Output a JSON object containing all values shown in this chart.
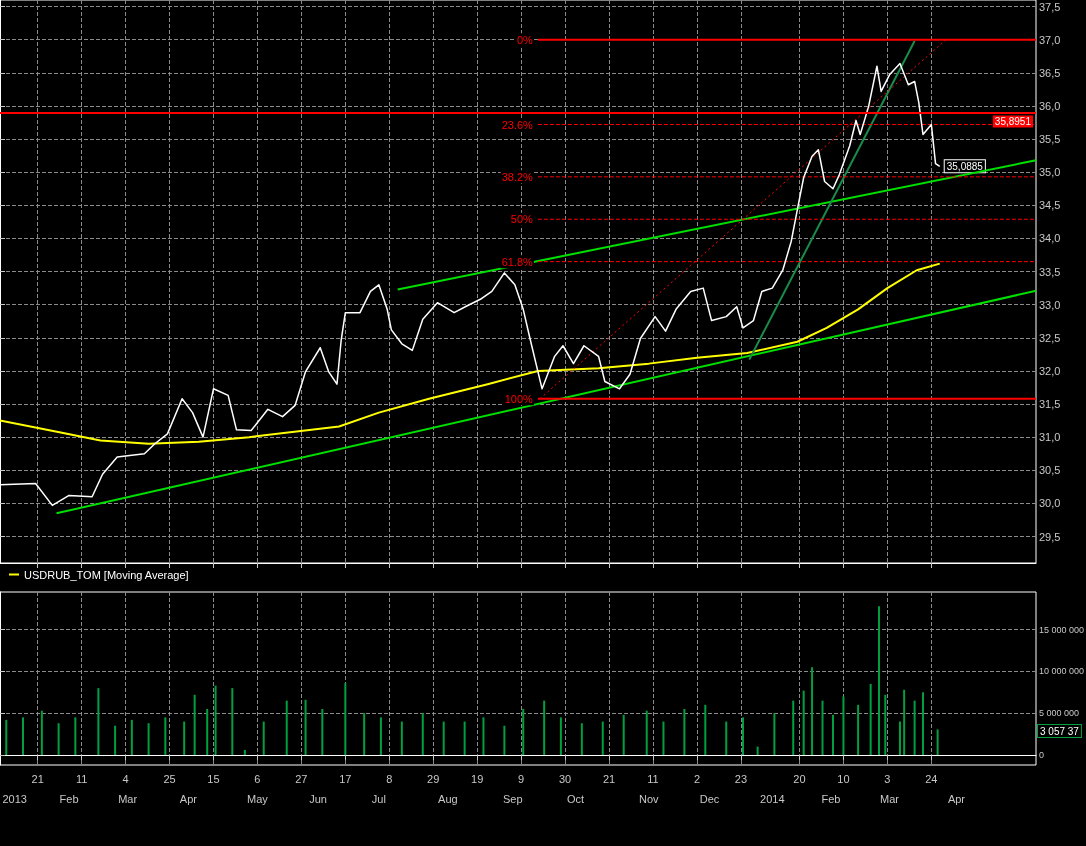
{
  "chart_data": [
    {
      "type": "line",
      "xlim": [
        "2013-01-03",
        "2014-05-13"
      ],
      "ylim": [
        29.1,
        37.6
      ],
      "xticks": [
        {
          "value": "2013-01-21",
          "label": null
        },
        {
          "value": "2013-02-11",
          "label": null
        },
        {
          "value": "2013-03-04",
          "label": null
        },
        {
          "value": "2013-03-25",
          "label": null
        },
        {
          "value": "2013-04-15",
          "label": null
        },
        {
          "value": "2013-05-06",
          "label": null
        },
        {
          "value": "2013-05-27",
          "label": null
        },
        {
          "value": "2013-06-17",
          "label": null
        },
        {
          "value": "2013-07-08",
          "label": null
        },
        {
          "value": "2013-07-29",
          "label": null
        },
        {
          "value": "2013-08-19",
          "label": null
        },
        {
          "value": "2013-09-09",
          "label": null
        },
        {
          "value": "2013-09-30",
          "label": null
        },
        {
          "value": "2013-10-21",
          "label": null
        },
        {
          "value": "2013-11-11",
          "label": null
        },
        {
          "value": "2013-12-02",
          "label": null
        },
        {
          "value": "2013-12-23",
          "label": null
        },
        {
          "value": "2014-01-20",
          "label": null
        },
        {
          "value": "2014-02-10",
          "label": null
        },
        {
          "value": "2014-03-03",
          "label": null
        },
        {
          "value": "2014-03-24",
          "label": null
        }
      ],
      "yticks": [
        {
          "value": 29.5,
          "label": "29,5"
        },
        {
          "value": 30,
          "label": "30,0"
        },
        {
          "value": 30.5,
          "label": "30,5"
        },
        {
          "value": 31,
          "label": "31,0"
        },
        {
          "value": 31.5,
          "label": "31,5"
        },
        {
          "value": 32,
          "label": "32,0"
        },
        {
          "value": 32.5,
          "label": "32,5"
        },
        {
          "value": 33,
          "label": "33,0"
        },
        {
          "value": 33.5,
          "label": "33,5"
        },
        {
          "value": 34,
          "label": "34,0"
        },
        {
          "value": 34.5,
          "label": "34,5"
        },
        {
          "value": 35,
          "label": "35,0"
        },
        {
          "value": 35.5,
          "label": "35,5"
        },
        {
          "value": 36,
          "label": "36,0"
        },
        {
          "value": 36.5,
          "label": "36,5"
        },
        {
          "value": 37,
          "label": "37,0"
        },
        {
          "value": 37.5,
          "label": "37,5"
        }
      ],
      "tick_labels": "y",
      "grid": true,
      "legend": "bottom left",
      "marker": "none",
      "series": [
        {
          "name": "USDRUB_TOM [Moving Average]",
          "color": "#ffff00",
          "x": [
            "2013-01-03",
            "2013-02-01",
            "2013-02-20",
            "2013-03-15",
            "2013-04-08",
            "2013-05-02",
            "2013-06-14",
            "2013-07-03",
            "2013-07-27",
            "2013-08-24",
            "2013-09-17",
            "2013-10-16",
            "2013-11-09",
            "2013-12-02",
            "2013-12-26",
            "2014-01-19",
            "2014-02-02",
            "2014-02-17",
            "2014-03-03",
            "2014-03-17",
            "2014-03-28"
          ],
          "values": [
            31.25,
            31.07,
            30.95,
            30.9,
            30.93,
            31.0,
            31.16,
            31.37,
            31.58,
            31.8,
            32.0,
            32.04,
            32.11,
            32.2,
            32.27,
            32.44,
            32.65,
            32.93,
            33.25,
            33.52,
            33.62
          ]
        },
        {
          "color": "#00e000",
          "x": [
            "2013-01-30",
            "2014-05-13"
          ],
          "values": [
            29.85,
            33.21
          ]
        },
        {
          "color": "#00e000",
          "x": [
            "2013-07-12",
            "2014-05-13"
          ],
          "values": [
            33.23,
            35.18
          ]
        },
        {
          "color": "#1a8c4a",
          "x": [
            "2013-12-27",
            "2014-03-16"
          ],
          "values": [
            32.17,
            36.98
          ]
        },
        {
          "color": "#ff0000",
          "line_style": "dotted",
          "x": [
            "2013-09-18",
            "2014-03-31"
          ],
          "values": [
            31.58,
            37.0
          ]
        },
        {
          "color": "#ff0000",
          "line_style": "solid",
          "x": [
            "2013-09-17",
            "2014-05-13"
          ],
          "values": [
            37.0,
            37.0
          ]
        },
        {
          "color": "#ff0000",
          "line_style": "dashed",
          "x": [
            "2013-09-17",
            "2014-05-13"
          ],
          "values": [
            35.72,
            35.72
          ]
        },
        {
          "color": "#ff0000",
          "line_style": "dashed",
          "x": [
            "2013-09-17",
            "2014-05-13"
          ],
          "values": [
            34.93,
            34.93
          ]
        },
        {
          "color": "#ff0000",
          "line_style": "dashed",
          "x": [
            "2013-09-17",
            "2014-05-13"
          ],
          "values": [
            34.29,
            34.29
          ]
        },
        {
          "color": "#ff0000",
          "line_style": "dashed",
          "x": [
            "2013-09-17",
            "2014-05-13"
          ],
          "values": [
            33.65,
            33.65
          ]
        },
        {
          "color": "#ff0000",
          "line_style": "solid",
          "x": [
            "2013-09-17",
            "2014-05-13"
          ],
          "values": [
            31.58,
            31.58
          ]
        },
        {
          "color": "#ffffff",
          "x": [
            "2013-01-03",
            "2013-01-20",
            "2013-01-28",
            "2013-02-05",
            "2013-02-16",
            "2013-02-21",
            "2013-02-28",
            "2013-03-13",
            "2013-03-18",
            "2013-03-24",
            "2013-03-31",
            "2013-04-05",
            "2013-04-10",
            "2013-04-15",
            "2013-04-22",
            "2013-04-26",
            "2013-05-03",
            "2013-05-11",
            "2013-05-18",
            "2013-05-24",
            "2013-05-29",
            "2013-06-05",
            "2013-06-09",
            "2013-06-13",
            "2013-06-15",
            "2013-06-17",
            "2013-06-24",
            "2013-06-29",
            "2013-07-03",
            "2013-07-07",
            "2013-07-09",
            "2013-07-14",
            "2013-07-19",
            "2013-07-24",
            "2013-07-31",
            "2013-08-08",
            "2013-08-14",
            "2013-08-21",
            "2013-08-26",
            "2013-09-01",
            "2013-09-06",
            "2013-09-10",
            "2013-09-13",
            "2013-09-19",
            "2013-09-25",
            "2013-09-29",
            "2013-10-04",
            "2013-10-09",
            "2013-10-16",
            "2013-10-19",
            "2013-10-26",
            "2013-10-31",
            "2013-11-05",
            "2013-11-12",
            "2013-11-17",
            "2013-11-22",
            "2013-11-29",
            "2013-12-05",
            "2013-12-09",
            "2013-12-16",
            "2013-12-21",
            "2013-12-24",
            "2013-12-29",
            "2014-01-02",
            "2014-01-07",
            "2014-01-12",
            "2014-01-16",
            "2014-01-19",
            "2014-01-22",
            "2014-01-26",
            "2014-01-29",
            "2014-02-01",
            "2014-02-05",
            "2014-02-08",
            "2014-02-13",
            "2014-02-16",
            "2014-02-18",
            "2014-02-22",
            "2014-02-26",
            "2014-02-28",
            "2014-03-04",
            "2014-03-09",
            "2014-03-13",
            "2014-03-16",
            "2014-03-18",
            "2014-03-20",
            "2014-03-24",
            "2014-03-26",
            "2014-03-28"
          ],
          "values": [
            30.28,
            30.3,
            29.97,
            30.12,
            30.1,
            30.44,
            30.7,
            30.75,
            30.9,
            31.05,
            31.58,
            31.37,
            31.0,
            31.73,
            31.63,
            31.11,
            31.1,
            31.42,
            31.31,
            31.48,
            31.99,
            32.35,
            31.99,
            31.8,
            32.46,
            32.88,
            32.88,
            33.2,
            33.3,
            32.93,
            32.62,
            32.41,
            32.31,
            32.78,
            33.03,
            32.88,
            32.98,
            33.09,
            33.2,
            33.48,
            33.3,
            32.93,
            32.52,
            31.73,
            32.22,
            32.38,
            32.11,
            32.38,
            32.22,
            31.84,
            31.73,
            31.95,
            32.49,
            32.82,
            32.6,
            32.93,
            33.2,
            33.25,
            32.76,
            32.82,
            32.97,
            32.65,
            32.76,
            33.2,
            33.25,
            33.52,
            33.95,
            34.44,
            34.92,
            35.24,
            35.34,
            34.86,
            34.75,
            34.96,
            35.4,
            35.78,
            35.57,
            35.99,
            36.6,
            36.22,
            36.47,
            36.64,
            36.32,
            36.37,
            36.05,
            35.57,
            35.72,
            35.13,
            35.0885
          ],
          "value_labels": [
            null,
            null,
            null,
            null,
            null,
            null,
            null,
            null,
            null,
            null,
            null,
            null,
            null,
            null,
            null,
            null,
            null,
            null,
            null,
            null,
            null,
            null,
            null,
            null,
            null,
            null,
            null,
            null,
            null,
            null,
            null,
            null,
            null,
            null,
            null,
            null,
            null,
            null,
            null,
            null,
            null,
            null,
            null,
            null,
            null,
            null,
            null,
            null,
            null,
            null,
            null,
            null,
            null,
            null,
            null,
            null,
            null,
            null,
            null,
            null,
            null,
            null,
            null,
            null,
            null,
            null,
            null,
            null,
            null,
            null,
            null,
            null,
            null,
            null,
            null,
            null,
            null,
            null,
            null,
            null,
            null,
            null,
            null,
            null,
            null,
            null,
            null,
            null,
            "35,0885"
          ]
        }
      ],
      "ref_lines": [
        {
          "axis": "y",
          "value": 35.8951,
          "label": "35,8951",
          "color": "#ff0000",
          "line_style": "solid"
        }
      ],
      "annotations": [
        {
          "text": "0%",
          "x": "2013-09-17",
          "y": 37.0
        },
        {
          "text": "23.6%",
          "x": "2013-09-17",
          "y": 35.72
        },
        {
          "text": "38.2%",
          "x": "2013-09-17",
          "y": 34.93
        },
        {
          "text": "50%",
          "x": "2013-09-17",
          "y": 34.29
        },
        {
          "text": "61.8%",
          "x": "2013-09-17",
          "y": 33.65
        },
        {
          "text": "100%",
          "x": "2013-09-17",
          "y": 31.58
        }
      ]
    },
    {
      "type": "bar",
      "xlim": [
        "2013-01-03",
        "2014-05-13"
      ],
      "x2lim": [
        "2013-01-03",
        "2014-05-13"
      ],
      "ylim": [
        -1200000,
        19500000
      ],
      "xticks": [
        {
          "value": "2013-01-21",
          "label": "21"
        },
        {
          "value": "2013-02-11",
          "label": "11"
        },
        {
          "value": "2013-03-04",
          "label": "4"
        },
        {
          "value": "2013-03-25",
          "label": "25"
        },
        {
          "value": "2013-04-15",
          "label": "15"
        },
        {
          "value": "2013-05-06",
          "label": "6"
        },
        {
          "value": "2013-05-27",
          "label": "27"
        },
        {
          "value": "2013-06-17",
          "label": "17"
        },
        {
          "value": "2013-07-08",
          "label": "8"
        },
        {
          "value": "2013-07-29",
          "label": "29"
        },
        {
          "value": "2013-08-19",
          "label": "19"
        },
        {
          "value": "2013-09-09",
          "label": "9"
        },
        {
          "value": "2013-09-30",
          "label": "30"
        },
        {
          "value": "2013-10-21",
          "label": "21"
        },
        {
          "value": "2013-11-11",
          "label": "11"
        },
        {
          "value": "2013-12-02",
          "label": "2"
        },
        {
          "value": "2013-12-23",
          "label": "23"
        },
        {
          "value": "2014-01-20",
          "label": "20"
        },
        {
          "value": "2014-02-10",
          "label": "10"
        },
        {
          "value": "2014-03-03",
          "label": "3"
        },
        {
          "value": "2014-03-24",
          "label": "24"
        }
      ],
      "x2ticks": [
        {
          "value": "2013-01-10",
          "label": "2013"
        },
        {
          "value": "2013-02-05",
          "label": "Feb"
        },
        {
          "value": "2013-03-05",
          "label": "Mar"
        },
        {
          "value": "2013-04-03",
          "label": "Apr"
        },
        {
          "value": "2013-05-06",
          "label": "May"
        },
        {
          "value": "2013-06-04",
          "label": "Jun"
        },
        {
          "value": "2013-07-03",
          "label": "Jul"
        },
        {
          "value": "2013-08-05",
          "label": "Aug"
        },
        {
          "value": "2013-09-05",
          "label": "Sep"
        },
        {
          "value": "2013-10-05",
          "label": "Oct"
        },
        {
          "value": "2013-11-09",
          "label": "Nov"
        },
        {
          "value": "2013-12-08",
          "label": "Dec"
        },
        {
          "value": "2014-01-07",
          "label": "2014"
        },
        {
          "value": "2014-02-04",
          "label": "Feb"
        },
        {
          "value": "2014-03-04",
          "label": "Mar"
        },
        {
          "value": "2014-04-05",
          "label": "Apr"
        }
      ],
      "yticks": [
        0,
        {
          "value": 5000000,
          "label": "5 000 000"
        },
        {
          "value": 10000000,
          "label": "10 000 000"
        },
        {
          "value": 15000000,
          "label": "15 000 000"
        }
      ],
      "grid": true,
      "series": [
        {
          "color": "#00a040",
          "x": [
            "2013-01-06",
            "2013-01-14",
            "2013-01-23",
            "2013-01-31",
            "2013-02-08",
            "2013-02-19",
            "2013-02-27",
            "2013-03-07",
            "2013-03-15",
            "2013-03-23",
            "2013-04-01",
            "2013-04-06",
            "2013-04-12",
            "2013-04-16",
            "2013-04-24",
            "2013-04-30",
            "2013-05-09",
            "2013-05-20",
            "2013-05-29",
            "2013-06-06",
            "2013-06-17",
            "2013-06-26",
            "2013-07-04",
            "2013-07-14",
            "2013-07-24",
            "2013-08-03",
            "2013-08-13",
            "2013-08-22",
            "2013-09-01",
            "2013-09-10",
            "2013-09-20",
            "2013-09-28",
            "2013-10-08",
            "2013-10-18",
            "2013-10-28",
            "2013-11-08",
            "2013-11-16",
            "2013-11-26",
            "2013-12-06",
            "2013-12-16",
            "2013-12-24",
            "2013-12-31",
            "2014-01-08",
            "2014-01-17",
            "2014-01-22",
            "2014-01-26",
            "2014-01-31",
            "2014-02-05",
            "2014-02-10",
            "2014-02-17",
            "2014-02-23",
            "2014-02-27",
            "2014-03-02",
            "2014-03-09",
            "2014-03-11",
            "2014-03-16",
            "2014-03-20",
            "2014-03-27"
          ],
          "values": [
            4200000,
            4500000,
            5300000,
            3800000,
            4500000,
            8000000,
            3500000,
            4200000,
            3800000,
            4500000,
            4000000,
            7200000,
            5500000,
            8300000,
            8000000,
            600000,
            4000000,
            6500000,
            6600000,
            5500000,
            8600000,
            5000000,
            4500000,
            4000000,
            5000000,
            4000000,
            4000000,
            4500000,
            3500000,
            5500000,
            6500000,
            4500000,
            3800000,
            4000000,
            4800000,
            5300000,
            4000000,
            5500000,
            6000000,
            4000000,
            4500000,
            1000000,
            5000000,
            6500000,
            7700000,
            10500000,
            6500000,
            4800000,
            7000000,
            6000000,
            8500000,
            17800000,
            7200000,
            4000000,
            7800000,
            6500000,
            7500000,
            3060000
          ]
        }
      ],
      "annotations": [
        "3 057 37"
      ]
    }
  ]
}
